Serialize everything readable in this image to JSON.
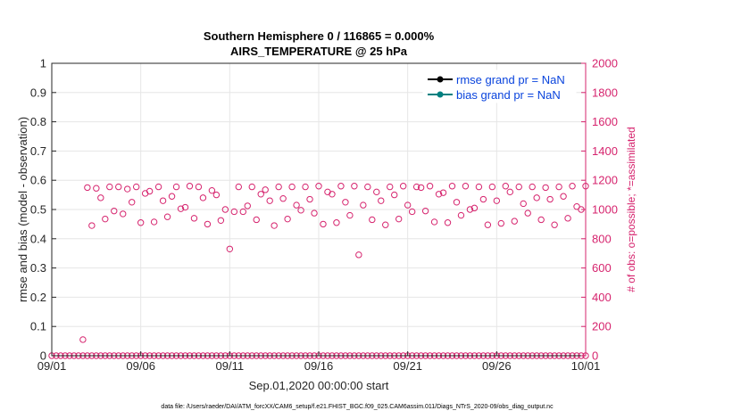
{
  "chart_data": {
    "type": "scatter",
    "title": "Southern Hemisphere 0 / 116865 = 0.000%",
    "subtitle": "AIRS_TEMPERATURE @ 25 hPa",
    "xlabel": "Sep.01,2020 00:00:00 start",
    "ylabel": "rmse and bias (model - observation)",
    "y2label": "# of obs: o=possible; *=assimilated",
    "footnote": "data file: /Users/raeder/DAI/ATM_forcXX/CAM6_setup/f.e21.FHIST_BGC.f09_025.CAM6assim.011/Diags_NTrS_2020-09/obs_diag_output.nc",
    "xlim": [
      0,
      30
    ],
    "ylim": [
      0,
      1
    ],
    "y2lim": [
      0,
      2000
    ],
    "x_ticks": [
      0,
      5,
      10,
      15,
      20,
      25,
      30
    ],
    "x_tick_labels": [
      "09/01",
      "09/06",
      "09/11",
      "09/16",
      "09/21",
      "09/26",
      "10/01"
    ],
    "y_ticks": [
      0,
      0.1,
      0.2,
      0.3,
      0.4,
      0.5,
      0.6,
      0.7,
      0.8,
      0.9,
      1
    ],
    "y_tick_labels": [
      "0",
      "0.1",
      "0.2",
      "0.3",
      "0.4",
      "0.5",
      "0.6",
      "0.7",
      "0.8",
      "0.9",
      "1"
    ],
    "y2_ticks": [
      0,
      200,
      400,
      600,
      800,
      1000,
      1200,
      1400,
      1600,
      1800,
      2000
    ],
    "y2_tick_labels": [
      "0",
      "200",
      "400",
      "600",
      "800",
      "1000",
      "1200",
      "1400",
      "1600",
      "1800",
      "2000"
    ],
    "grid": true,
    "legend_position": "top-right",
    "legend": [
      {
        "label": "rmse grand pr = NaN",
        "color": "#000000"
      },
      {
        "label": "bias grand pr = NaN",
        "color": "#008080"
      }
    ],
    "colors": {
      "obs": "#d6246e",
      "legend_text": "#0a44dd",
      "axis": "#262626",
      "grid": "#e6e6e6"
    },
    "possible_obs": {
      "name": "possible",
      "marker": "circle",
      "x": [
        0.0,
        0.25,
        0.5,
        0.75,
        1.0,
        1.25,
        1.5,
        1.75,
        2.0,
        2.25,
        2.5,
        2.75,
        3.0,
        3.25,
        3.5,
        3.75,
        4.0,
        4.25,
        4.5,
        4.75,
        5.0,
        5.25,
        5.5,
        5.75,
        6.0,
        6.25,
        6.5,
        6.75,
        7.0,
        7.25,
        7.5,
        7.75,
        8.0,
        8.25,
        8.5,
        8.75,
        9.0,
        9.25,
        9.5,
        9.75,
        10.0,
        10.25,
        10.5,
        10.75,
        11.0,
        11.25,
        11.5,
        11.75,
        12.0,
        12.25,
        12.5,
        12.75,
        13.0,
        13.25,
        13.5,
        13.75,
        14.0,
        14.25,
        14.5,
        14.75,
        15.0,
        15.25,
        15.5,
        15.75,
        16.0,
        16.25,
        16.5,
        16.75,
        17.0,
        17.25,
        17.5,
        17.75,
        18.0,
        18.25,
        18.5,
        18.75,
        19.0,
        19.25,
        19.5,
        19.75,
        20.0,
        20.25,
        20.5,
        20.75,
        21.0,
        21.25,
        21.5,
        21.75,
        22.0,
        22.25,
        22.5,
        22.75,
        23.0,
        23.25,
        23.5,
        23.75,
        24.0,
        24.25,
        24.5,
        24.75,
        25.0,
        25.25,
        25.5,
        25.75,
        26.0,
        26.25,
        26.5,
        26.75,
        27.0,
        27.25,
        27.5,
        27.75,
        28.0,
        28.25,
        28.5,
        28.75,
        29.0,
        29.25,
        29.5,
        29.75,
        30.0
      ],
      "y": [
        0,
        0,
        0,
        0,
        0,
        0,
        0,
        0,
        0,
        0,
        0,
        0,
        0,
        0,
        0,
        0,
        0,
        0,
        0,
        0,
        0,
        0,
        0,
        0,
        0,
        0,
        0,
        0,
        0,
        0,
        0,
        0,
        0,
        0,
        0,
        0,
        0,
        0,
        0,
        0,
        0,
        0,
        0,
        0,
        0,
        0,
        0,
        0,
        0,
        0,
        0,
        0,
        0,
        0,
        0,
        0,
        0,
        0,
        0,
        0,
        0,
        0,
        0,
        0,
        0,
        0,
        0,
        0,
        0,
        0,
        0,
        0,
        0,
        0,
        0,
        0,
        0,
        0,
        0,
        0,
        0,
        0,
        0,
        0,
        0,
        0,
        0,
        0,
        0,
        0,
        0,
        0,
        0,
        0,
        0,
        0,
        0,
        0,
        0,
        0,
        0,
        0,
        0,
        0,
        0,
        0,
        0,
        0,
        0,
        0,
        0,
        0,
        0,
        0,
        0,
        0,
        0,
        0,
        0,
        0,
        0
      ]
    },
    "series": [
      {
        "name": "possible (observation count)",
        "axis": "right",
        "marker": "circle",
        "x": [
          1.75,
          2.0,
          2.25,
          2.5,
          2.75,
          3.0,
          3.25,
          3.5,
          3.75,
          4.0,
          4.25,
          4.5,
          4.75,
          5.0,
          5.25,
          5.5,
          5.75,
          6.0,
          6.25,
          6.5,
          6.75,
          7.0,
          7.25,
          7.5,
          7.75,
          8.0,
          8.25,
          8.5,
          8.75,
          9.0,
          9.25,
          9.5,
          9.75,
          10.0,
          10.25,
          10.5,
          10.75,
          11.0,
          11.25,
          11.5,
          11.75,
          12.0,
          12.25,
          12.5,
          12.75,
          13.0,
          13.25,
          13.5,
          13.75,
          14.0,
          14.25,
          14.5,
          14.75,
          15.0,
          15.25,
          15.5,
          15.75,
          16.0,
          16.25,
          16.5,
          16.75,
          17.0,
          17.25,
          17.5,
          17.75,
          18.0,
          18.25,
          18.5,
          18.75,
          19.0,
          19.25,
          19.5,
          19.75,
          20.0,
          20.25,
          20.5,
          20.75,
          21.0,
          21.25,
          21.5,
          21.75,
          22.0,
          22.25,
          22.5,
          22.75,
          23.0,
          23.25,
          23.5,
          23.75,
          24.0,
          24.25,
          24.5,
          24.75,
          25.0,
          25.25,
          25.5,
          25.75,
          26.0,
          26.25,
          26.5,
          26.75,
          27.0,
          27.25,
          27.5,
          27.75,
          28.0,
          28.25,
          28.5,
          28.75,
          29.0,
          29.25,
          29.5,
          29.75,
          30.0
        ],
        "values": [
          110,
          1150,
          890,
          1145,
          1080,
          935,
          1155,
          990,
          1155,
          970,
          1140,
          1050,
          1155,
          910,
          1110,
          1125,
          915,
          1155,
          1060,
          950,
          1090,
          1155,
          1005,
          1015,
          1160,
          940,
          1155,
          1080,
          900,
          1130,
          1100,
          925,
          1000,
          730,
          985,
          1155,
          985,
          1025,
          1155,
          930,
          1105,
          1135,
          1060,
          890,
          1155,
          1075,
          935,
          1155,
          1030,
          995,
          1155,
          1070,
          975,
          1160,
          900,
          1120,
          1105,
          910,
          1160,
          1050,
          960,
          1160,
          690,
          1030,
          1155,
          930,
          1120,
          1060,
          895,
          1155,
          1100,
          935,
          1160,
          1030,
          985,
          1155,
          1150,
          990,
          1160,
          915,
          1105,
          1115,
          910,
          1160,
          1050,
          960,
          1160,
          1000,
          1010,
          1155,
          1070,
          895,
          1155,
          1060,
          905,
          1160,
          1120,
          920,
          1155,
          1040,
          975,
          1155,
          1080,
          930,
          1150,
          1070,
          895,
          1155,
          1090,
          940,
          1160,
          1020,
          1000,
          1160
        ]
      },
      {
        "name": "rmse grand pr = NaN",
        "axis": "left",
        "values": []
      },
      {
        "name": "bias grand pr = NaN",
        "axis": "left",
        "values": []
      }
    ]
  }
}
